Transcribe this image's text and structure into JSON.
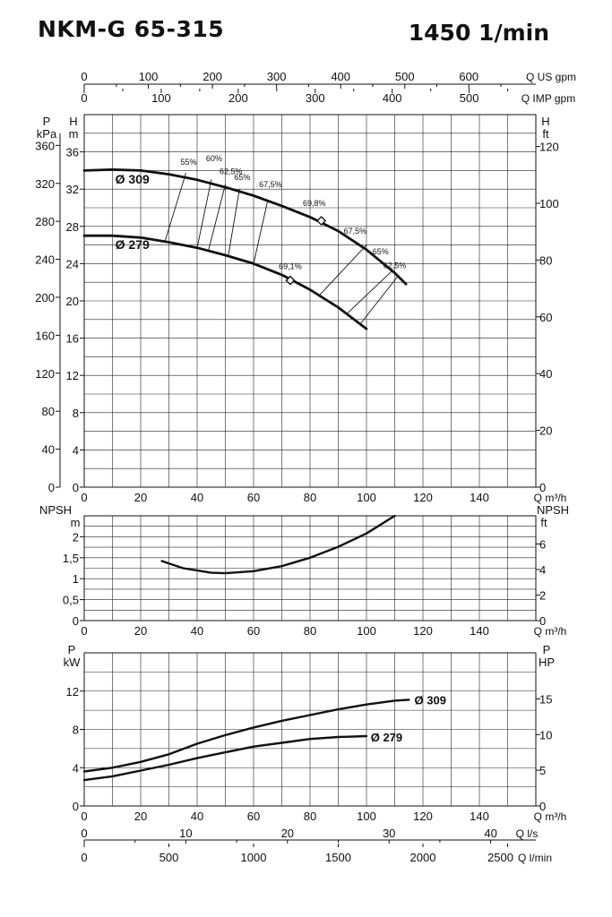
{
  "header": {
    "model": "NKM-G 65-315",
    "speed": "1450 1/min"
  },
  "chart_data": {
    "type": "line",
    "flow_axes": {
      "top_us_gpm": {
        "label": "Q US gpm",
        "ticks": [
          0,
          100,
          200,
          300,
          400,
          500,
          600
        ]
      },
      "top_imp_gpm": {
        "label": "Q IMP gpm",
        "ticks": [
          0,
          100,
          200,
          300,
          400,
          500
        ]
      },
      "q_m3h": {
        "label": "Q m³/h",
        "ticks": [
          0,
          20,
          40,
          60,
          80,
          100,
          120,
          140
        ]
      },
      "bottom_ls": {
        "label": "Q l/s",
        "ticks": [
          0,
          10,
          20,
          30,
          40
        ]
      },
      "bottom_lmin": {
        "label": "Q l/min",
        "ticks": [
          0,
          500,
          1000,
          1500,
          2000,
          2500
        ]
      }
    },
    "head_chart": {
      "y_left_kpa": {
        "label1": "P",
        "label2": "kPa",
        "ticks": [
          0,
          40,
          80,
          120,
          160,
          200,
          240,
          280,
          320,
          360
        ]
      },
      "y_left_m": {
        "label1": "H",
        "label2": "m",
        "ticks": [
          0,
          4,
          8,
          12,
          16,
          20,
          24,
          28,
          32,
          36
        ],
        "ylim": [
          0,
          40
        ]
      },
      "y_right_ft": {
        "label1": "H",
        "label2": "ft",
        "ticks": [
          0,
          20,
          40,
          60,
          80,
          100,
          120
        ]
      },
      "xlim": [
        0,
        160
      ],
      "series": [
        {
          "name": "Ø 309",
          "x": [
            0,
            10,
            20,
            30,
            40,
            50,
            60,
            70,
            80,
            90,
            100,
            110,
            114
          ],
          "y": [
            34,
            34.1,
            34.0,
            33.6,
            33.0,
            32.2,
            31.3,
            30.2,
            29.0,
            27.5,
            25.5,
            23.0,
            21.8
          ]
        },
        {
          "name": "Ø 279",
          "x": [
            0,
            10,
            20,
            30,
            40,
            50,
            60,
            70,
            80,
            90,
            100
          ],
          "y": [
            27,
            27.0,
            26.8,
            26.3,
            25.7,
            24.9,
            24.0,
            22.8,
            21.2,
            19.3,
            17.0
          ]
        }
      ],
      "efficiency_lines": [
        {
          "label": "55%",
          "x": [
            28.5,
            36
          ],
          "y": [
            26.3,
            33.7
          ]
        },
        {
          "label": "60%",
          "x": [
            40,
            45
          ],
          "y": [
            25.7,
            33.0
          ]
        },
        {
          "label": "62,5%",
          "x": [
            44,
            50
          ],
          "y": [
            25.4,
            32.5
          ]
        },
        {
          "label": "65%",
          "x": [
            51,
            55
          ],
          "y": [
            24.8,
            32.0
          ]
        },
        {
          "label": "67,5%",
          "x": [
            60,
            65
          ],
          "y": [
            24.0,
            30.8
          ]
        },
        {
          "label": "67,5%",
          "x": [
            83,
            100
          ],
          "y": [
            20.5,
            26.0
          ]
        },
        {
          "label": "65%",
          "x": [
            93,
            109
          ],
          "y": [
            18.6,
            23.2
          ]
        },
        {
          "label": "62,5%",
          "x": [
            98,
            111
          ],
          "y": [
            17.6,
            22.6
          ]
        }
      ],
      "efficiency_points": [
        {
          "label": "69,8%",
          "x": 84,
          "y": 28.6
        },
        {
          "label": "69,1%",
          "x": 73,
          "y": 22.2
        }
      ],
      "efficiency_labels": [
        {
          "label": "55%",
          "x": 37,
          "y": 34.6
        },
        {
          "label": "60%",
          "x": 46,
          "y": 35.0
        },
        {
          "label": "62,5%",
          "x": 52,
          "y": 33.6
        },
        {
          "label": "65%",
          "x": 56,
          "y": 33.0
        },
        {
          "label": "67,5%",
          "x": 66,
          "y": 32.2
        },
        {
          "label": "69,8%",
          "x": 81.5,
          "y": 30.2
        },
        {
          "label": "67,5%",
          "x": 96,
          "y": 27.2
        },
        {
          "label": "65%",
          "x": 105,
          "y": 25.0
        },
        {
          "label": "62,5%",
          "x": 110,
          "y": 23.5
        },
        {
          "label": "69,1%",
          "x": 73,
          "y": 23.4
        }
      ],
      "curve_labels": [
        {
          "label": "Ø 309",
          "x": 11,
          "y": 32.6
        },
        {
          "label": "Ø 279",
          "x": 11,
          "y": 25.6
        }
      ]
    },
    "npsh_chart": {
      "y_left_m": {
        "label1": "NPSH",
        "label2": "m",
        "ticks": [
          "0",
          "0,5",
          "1",
          "1,5",
          "2"
        ],
        "ticks_num": [
          0,
          0.5,
          1,
          1.5,
          2
        ],
        "ylim": [
          0,
          2.5
        ]
      },
      "y_right_ft": {
        "label1": "NPSH",
        "label2": "ft",
        "ticks": [
          0,
          2,
          4,
          6
        ]
      },
      "series": [
        {
          "x": [
            27.5,
            35,
            45,
            50,
            60,
            70,
            80,
            90,
            100,
            110
          ],
          "y": [
            1.42,
            1.25,
            1.14,
            1.13,
            1.18,
            1.3,
            1.5,
            1.76,
            2.08,
            2.5
          ]
        }
      ]
    },
    "power_chart": {
      "y_left_kw": {
        "label1": "P",
        "label2": "kW",
        "ticks": [
          0,
          4,
          8,
          12
        ],
        "ylim": [
          0,
          16
        ]
      },
      "y_right_hp": {
        "label1": "P",
        "label2": "HP",
        "ticks": [
          0,
          5,
          10,
          15
        ]
      },
      "series": [
        {
          "name": "Ø 309",
          "x": [
            0,
            10,
            20,
            30,
            40,
            50,
            60,
            70,
            80,
            90,
            100,
            110,
            115
          ],
          "y": [
            3.6,
            4.0,
            4.6,
            5.4,
            6.5,
            7.4,
            8.2,
            8.9,
            9.5,
            10.1,
            10.6,
            11.0,
            11.1
          ]
        },
        {
          "name": "Ø 279",
          "x": [
            0,
            10,
            20,
            30,
            40,
            50,
            60,
            70,
            80,
            90,
            100
          ],
          "y": [
            2.7,
            3.1,
            3.7,
            4.3,
            5.0,
            5.6,
            6.2,
            6.6,
            7.0,
            7.2,
            7.3
          ]
        }
      ],
      "curve_labels": [
        {
          "label": "Ø 309",
          "x": 117,
          "y": 11.1
        },
        {
          "label": "Ø 279",
          "x": 101.5,
          "y": 7.2
        }
      ]
    }
  }
}
